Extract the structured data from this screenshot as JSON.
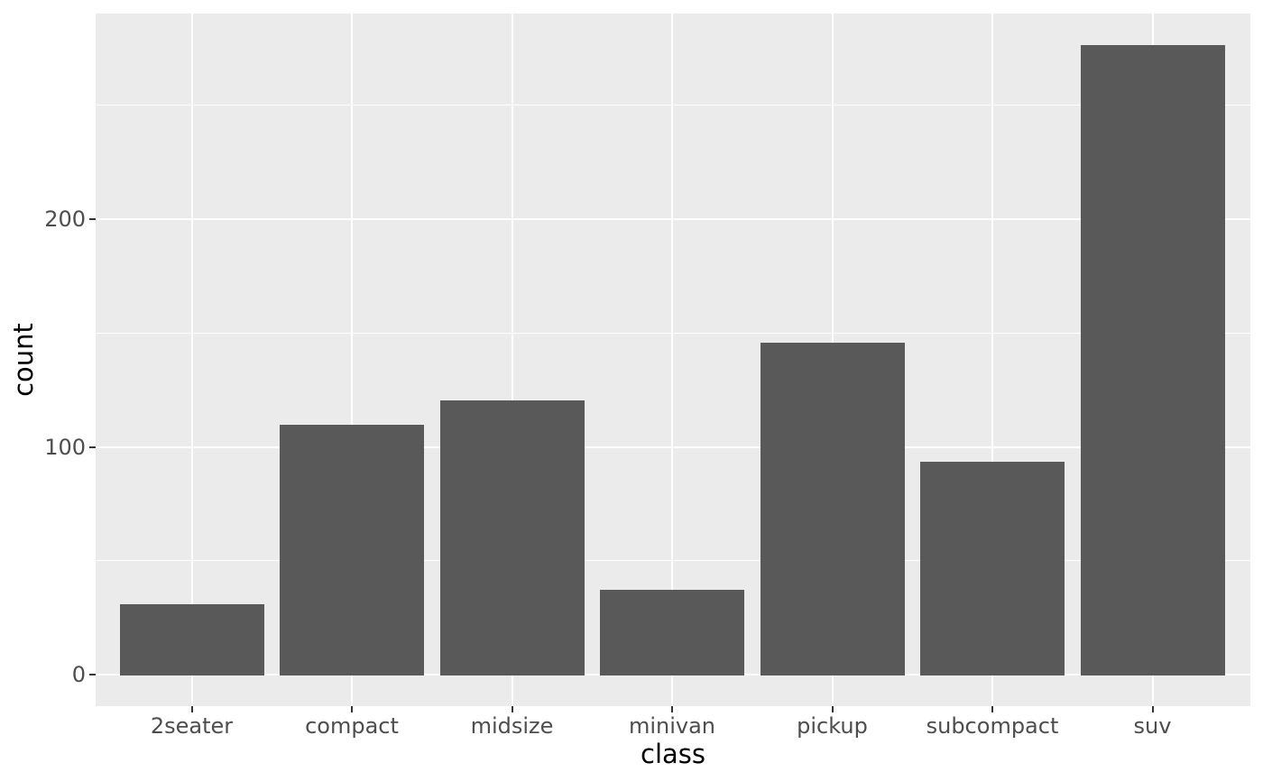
{
  "chart_data": {
    "type": "bar",
    "title": "",
    "categories": [
      "2seater",
      "compact",
      "midsize",
      "minivan",
      "pickup",
      "subcompact",
      "suv"
    ],
    "values": [
      30.7,
      109.6,
      120.3,
      37.4,
      145.7,
      93.3,
      276.4
    ],
    "xlabel": "class",
    "ylabel": "count",
    "ylim": [
      -14,
      290.6
    ],
    "yticks": [
      0,
      100,
      200
    ],
    "ytick_labels": [
      "0",
      "100",
      "200"
    ],
    "yticks_minor": [
      50,
      150,
      250
    ],
    "grid": "major and minor, white on grey panel",
    "legend_position": "none",
    "style": "ggplot2 theme_grey, single series"
  },
  "colors": {
    "bar_fill": "#595959",
    "panel_background": "#EBEBEB",
    "grid_major": "#FFFFFF",
    "grid_minor": "#FFFFFF",
    "tick_mark": "#333333",
    "tick_label": "#4D4D4D",
    "axis_title": "#000000",
    "outer_background": "#FFFFFF"
  }
}
